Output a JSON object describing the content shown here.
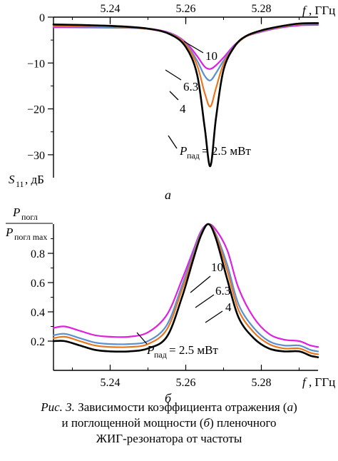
{
  "figure": {
    "caption_label": "Рис. 3.",
    "caption_line1": " Зависимости коэффициента отражения (",
    "caption_a": "а",
    "caption_line1_end": ")",
    "caption_line2_start": "и поглощенной мощности (",
    "caption_b": "б",
    "caption_line2_end": ") пленочного",
    "caption_line3": "ЖИГ-резонатора от частоты"
  },
  "chart_data": [
    {
      "type": "line",
      "panel_label": "а",
      "xlabel_symbol": "f",
      "xlabel_unit": ", ГГц",
      "ylabel_symbol": "S",
      "ylabel_sub": "11",
      "ylabel_unit": ", дБ",
      "xlim": [
        5.225,
        5.295
      ],
      "ylim": [
        -35,
        0
      ],
      "xticks": [
        5.24,
        5.26,
        5.28
      ],
      "xtick_labels": [
        "5.24",
        "5.26",
        "5.28"
      ],
      "yticks": [
        0,
        -10,
        -20,
        -30
      ],
      "ytick_labels": [
        "0",
        "−10",
        "−20",
        "−30"
      ],
      "legend": "curve labels",
      "annotation_power_symbol": "P",
      "annotation_power_sub": "пад",
      "annotation_power_value": " = 2.5 мВт",
      "series": [
        {
          "name": "10",
          "color": "#e020e0",
          "x": [
            5.225,
            5.24,
            5.25,
            5.256,
            5.26,
            5.263,
            5.265,
            5.2665,
            5.268,
            5.27,
            5.273,
            5.276,
            5.28,
            5.285,
            5.29,
            5.295
          ],
          "y": [
            -2.2,
            -2.3,
            -2.5,
            -3.5,
            -5.5,
            -8.5,
            -10.8,
            -11.3,
            -10.5,
            -8.8,
            -6.0,
            -4.2,
            -3.2,
            -2.3,
            -1.8,
            -1.7
          ]
        },
        {
          "name": "6.3",
          "color": "#5b8fd0",
          "x": [
            5.225,
            5.24,
            5.25,
            5.256,
            5.26,
            5.263,
            5.265,
            5.2665,
            5.268,
            5.27,
            5.273,
            5.276,
            5.28,
            5.285,
            5.29,
            5.295
          ],
          "y": [
            -2.0,
            -2.2,
            -2.6,
            -3.6,
            -5.8,
            -9.5,
            -12.8,
            -13.8,
            -12.2,
            -9.5,
            -6.2,
            -4.2,
            -3.1,
            -2.2,
            -1.6,
            -1.5
          ]
        },
        {
          "name": "4",
          "color": "#e8761e",
          "x": [
            5.225,
            5.24,
            5.25,
            5.256,
            5.26,
            5.263,
            5.265,
            5.2665,
            5.268,
            5.27,
            5.273,
            5.276,
            5.28,
            5.285,
            5.29,
            5.295
          ],
          "y": [
            -1.8,
            -2.0,
            -2.6,
            -3.7,
            -6.0,
            -10.5,
            -16.5,
            -19.5,
            -15.5,
            -10.2,
            -6.3,
            -4.2,
            -3.0,
            -2.1,
            -1.5,
            -1.4
          ]
        },
        {
          "name": "2.5",
          "color": "#000000",
          "x": [
            5.225,
            5.24,
            5.25,
            5.256,
            5.26,
            5.263,
            5.265,
            5.2665,
            5.268,
            5.27,
            5.273,
            5.276,
            5.28,
            5.285,
            5.29,
            5.295
          ],
          "y": [
            -1.6,
            -1.9,
            -2.5,
            -3.8,
            -6.5,
            -12.5,
            -24.0,
            -32.5,
            -22.0,
            -11.5,
            -6.3,
            -4.1,
            -2.9,
            -2.0,
            -1.4,
            -1.3
          ]
        }
      ],
      "curve_labels": [
        {
          "text": "10",
          "series": "10"
        },
        {
          "text": "6.3",
          "series": "6.3"
        },
        {
          "text": "4",
          "series": "4"
        }
      ]
    },
    {
      "type": "line",
      "panel_label": "б",
      "xlabel_symbol": "f",
      "xlabel_unit": ", ГГц",
      "ylabel_top_symbol": "P",
      "ylabel_top_sub": "погл",
      "ylabel_bottom_symbol": "P",
      "ylabel_bottom_sub": "погл max",
      "xlim": [
        5.225,
        5.295
      ],
      "ylim": [
        0,
        1.0
      ],
      "xticks": [
        5.24,
        5.26,
        5.28
      ],
      "xtick_labels": [
        "5.24",
        "5.26",
        "5.28"
      ],
      "yticks": [
        0.2,
        0.4,
        0.6,
        0.8
      ],
      "ytick_labels": [
        "0.2",
        "0.4",
        "0.6",
        "0.8"
      ],
      "legend": "curve labels",
      "annotation_power_symbol": "P",
      "annotation_power_sub": "пад",
      "annotation_power_value": " = 2.5 мВт",
      "series": [
        {
          "name": "10",
          "color": "#e020e0",
          "x": [
            5.225,
            5.228,
            5.232,
            5.236,
            5.24,
            5.245,
            5.25,
            5.255,
            5.259,
            5.262,
            5.264,
            5.266,
            5.268,
            5.271,
            5.274,
            5.278,
            5.282,
            5.286,
            5.29,
            5.293,
            5.295
          ],
          "y": [
            0.29,
            0.3,
            0.27,
            0.24,
            0.23,
            0.23,
            0.26,
            0.38,
            0.62,
            0.82,
            0.95,
            1.0,
            0.96,
            0.82,
            0.56,
            0.36,
            0.25,
            0.21,
            0.2,
            0.17,
            0.16
          ]
        },
        {
          "name": "6.3",
          "color": "#5b8fd0",
          "x": [
            5.225,
            5.228,
            5.232,
            5.236,
            5.24,
            5.245,
            5.25,
            5.255,
            5.259,
            5.262,
            5.264,
            5.266,
            5.268,
            5.271,
            5.274,
            5.278,
            5.282,
            5.286,
            5.29,
            5.293,
            5.295
          ],
          "y": [
            0.24,
            0.25,
            0.22,
            0.19,
            0.18,
            0.18,
            0.2,
            0.31,
            0.58,
            0.8,
            0.94,
            1.0,
            0.93,
            0.72,
            0.45,
            0.29,
            0.2,
            0.17,
            0.17,
            0.14,
            0.13
          ]
        },
        {
          "name": "4",
          "color": "#e8761e",
          "x": [
            5.225,
            5.228,
            5.232,
            5.236,
            5.24,
            5.245,
            5.25,
            5.255,
            5.259,
            5.262,
            5.264,
            5.266,
            5.268,
            5.271,
            5.274,
            5.278,
            5.282,
            5.286,
            5.29,
            5.293,
            5.295
          ],
          "y": [
            0.22,
            0.23,
            0.2,
            0.17,
            0.16,
            0.16,
            0.18,
            0.28,
            0.55,
            0.78,
            0.93,
            1.0,
            0.92,
            0.68,
            0.41,
            0.26,
            0.18,
            0.15,
            0.15,
            0.12,
            0.11
          ]
        },
        {
          "name": "2.5",
          "color": "#000000",
          "x": [
            5.225,
            5.228,
            5.232,
            5.236,
            5.24,
            5.245,
            5.25,
            5.255,
            5.259,
            5.262,
            5.264,
            5.266,
            5.268,
            5.271,
            5.274,
            5.278,
            5.282,
            5.286,
            5.29,
            5.293,
            5.295
          ],
          "y": [
            0.2,
            0.2,
            0.17,
            0.14,
            0.13,
            0.13,
            0.15,
            0.23,
            0.5,
            0.76,
            0.92,
            1.0,
            0.9,
            0.62,
            0.36,
            0.22,
            0.15,
            0.13,
            0.13,
            0.1,
            0.09
          ]
        }
      ],
      "curve_labels": [
        {
          "text": "10",
          "series": "10"
        },
        {
          "text": "6.3",
          "series": "6.3"
        },
        {
          "text": "4",
          "series": "4"
        }
      ]
    }
  ]
}
